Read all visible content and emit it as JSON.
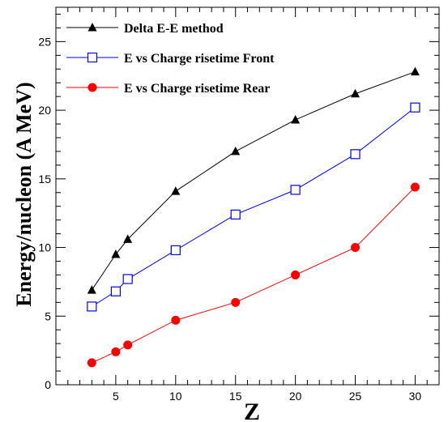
{
  "chart_data": {
    "type": "line",
    "xlabel": "Z",
    "ylabel": "Energy/nucleon (A MeV)",
    "xlim": [
      0,
      32
    ],
    "ylim": [
      0,
      27.5
    ],
    "xticks": [
      5,
      10,
      15,
      20,
      25,
      30
    ],
    "yticks": [
      0,
      5,
      10,
      15,
      20,
      25
    ],
    "x_tick_labels": [
      "5",
      "10",
      "15",
      "20",
      "25",
      "30"
    ],
    "y_tick_labels": [
      "0",
      "5",
      "10",
      "15",
      "20",
      "25"
    ],
    "grid": false,
    "legend_position": "top-left",
    "series": [
      {
        "name": "Delta E-E method",
        "color": "#000000",
        "marker": "filled-triangle",
        "x": [
          3,
          5,
          6,
          10,
          15,
          20,
          25,
          30
        ],
        "y": [
          6.9,
          9.5,
          10.6,
          14.1,
          17.0,
          19.3,
          21.2,
          22.8
        ]
      },
      {
        "name": "E vs Charge risetime Front",
        "color": "#0000ff",
        "marker": "open-square",
        "x": [
          3,
          5,
          6,
          10,
          15,
          20,
          25,
          30
        ],
        "y": [
          5.7,
          6.8,
          7.7,
          9.8,
          12.4,
          14.2,
          16.8,
          20.2
        ]
      },
      {
        "name": "E vs Charge risetime Rear",
        "color": "#ff0000",
        "marker": "filled-circle",
        "x": [
          3,
          5,
          6,
          10,
          15,
          20,
          25,
          30
        ],
        "y": [
          1.6,
          2.4,
          2.9,
          4.7,
          6.0,
          8.0,
          10.0,
          14.4
        ]
      }
    ]
  }
}
